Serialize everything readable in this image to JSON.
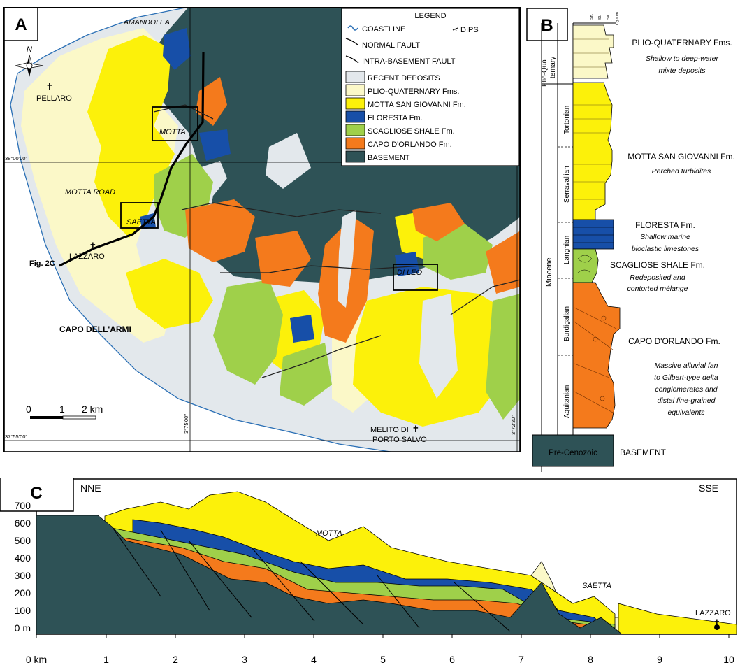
{
  "panel_a": {
    "letter": "A",
    "north": "N",
    "places": {
      "amandolea": "AMANDOLEA",
      "pellaro": "PELLARO",
      "motta": "MOTTA",
      "motta_road": "MOTTA ROAD",
      "saetta": "SAETTA",
      "lazzaro": "LAZZARO",
      "fig2c": "Fig. 2C",
      "di_leo": "DI LEO",
      "capo_dell_armi": "CAPO DELL'ARMI",
      "melito_1": "MELITO DI",
      "melito_2": "PORTO SALVO"
    },
    "coords": {
      "lat_top": "38°00'00\"",
      "lat_bottom": "37°55'00\"",
      "lon_mid": "3°75'00\"",
      "lon_right": "3°72'30\""
    },
    "scale": {
      "zero": "0",
      "one": "1",
      "two": "2 km"
    },
    "legend": {
      "title": "LEGEND",
      "symbols": {
        "coastline": "COASTLINE",
        "dips": "DIPS",
        "normal_fault": "NORMAL FAULT",
        "intra_fault": "INTRA-BASEMENT FAULT"
      },
      "units": [
        {
          "label": "RECENT DEPOSITS",
          "color": "#e3e8ec"
        },
        {
          "label": "PLIO-QUATERNARY Fms.",
          "color": "#fbf8c8"
        },
        {
          "label": "MOTTA SAN GIOVANNI Fm.",
          "color": "#fcf10a"
        },
        {
          "label": "FLORESTA Fm.",
          "color": "#174fa8"
        },
        {
          "label": "SCAGLIOSE SHALE Fm.",
          "color": "#9fd04a"
        },
        {
          "label": "CAPO D'ORLANDO Fm.",
          "color": "#f47a1c"
        },
        {
          "label": "BASEMENT",
          "color": "#2e5256"
        }
      ]
    }
  },
  "panel_b": {
    "letter": "B",
    "lith_header": [
      "Sh.",
      "Sl.",
      "Sa.",
      "Cg./Lim."
    ],
    "epochs": {
      "plioqua": "Plio-Qua ternary",
      "miocene": "Miocene"
    },
    "stages": [
      "Tortonian",
      "Serravallian",
      "Langhian",
      "Burdigalian",
      "Aquitanian"
    ],
    "pre": "Pre-Cenozoic",
    "units": [
      {
        "name": "PLIO-QUATERNARY Fms.",
        "desc": "Shallow to deep-water mixte deposits"
      },
      {
        "name": "MOTTA SAN GIOVANNI Fm.",
        "desc": "Perched turbidites"
      },
      {
        "name": "FLORESTA Fm.",
        "desc": "Shallow marine bioclastic limestones"
      },
      {
        "name": "SCAGLIOSE SHALE Fm.",
        "desc": "Redeposited and contorted mélange"
      },
      {
        "name": "CAPO D'ORLANDO Fm.",
        "desc": "Massive alluvial fan to Gilbert-type delta conglomerates and distal fine-grained equivalents"
      },
      {
        "name": "BASEMENT",
        "desc": ""
      }
    ]
  },
  "panel_c": {
    "letter": "C",
    "left_end": "NNE",
    "right_end": "SSE",
    "y_ticks": [
      "700",
      "600",
      "500",
      "400",
      "300",
      "200",
      "100",
      "0 m"
    ],
    "x_ticks": [
      "0 km",
      "1",
      "2",
      "3",
      "4",
      "5",
      "6",
      "7",
      "8",
      "9",
      "10"
    ],
    "labels": {
      "motta": "MOTTA",
      "saetta": "SAETTA",
      "lazzaro": "LAZZARO"
    }
  }
}
